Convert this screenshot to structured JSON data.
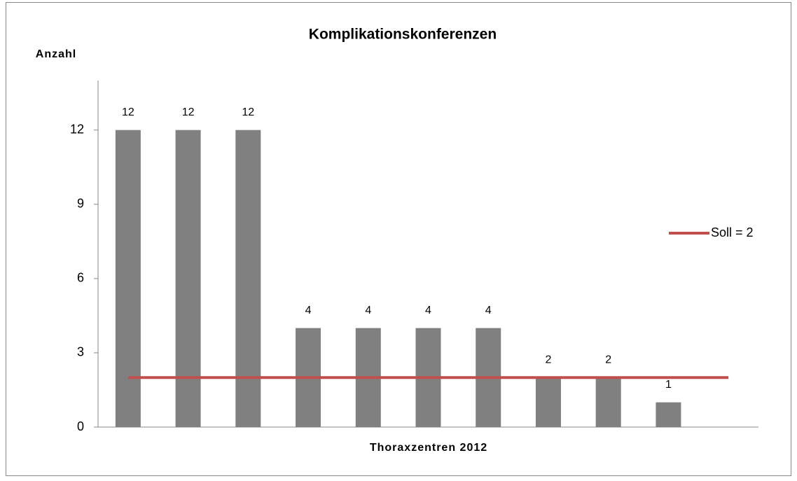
{
  "chart_data": {
    "type": "bar",
    "title": "Komplikationskonferenzen",
    "y_label": "Anzahl",
    "x_label": "Thoraxzentren 2012",
    "categories": [
      null,
      null,
      null,
      null,
      null,
      null,
      null,
      null,
      null,
      null,
      null
    ],
    "series": [
      {
        "type": "bar",
        "color": "#808080",
        "values": [
          12,
          12,
          12,
          4,
          4,
          4,
          4,
          2,
          2,
          1,
          null
        ]
      },
      {
        "name": "Soll = 2",
        "type": "line",
        "color": "#c0504d",
        "values": [
          2,
          2,
          2,
          2,
          2,
          2,
          2,
          2,
          2,
          2,
          2
        ]
      }
    ],
    "ylim": [
      0,
      14
    ],
    "yticks": [
      0,
      3,
      6,
      9,
      12
    ],
    "grid": false,
    "legend": "right",
    "data_labels": true
  }
}
